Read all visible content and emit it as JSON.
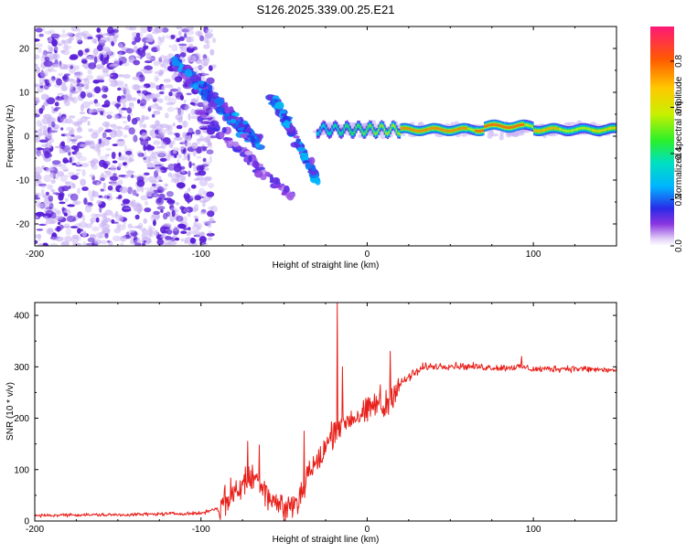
{
  "figure_title": "S126.2025.339.00.25.E21",
  "colors": {
    "frame": "#000000",
    "snr_line": "#e8201a",
    "speckle_strong": "#5a1fd8",
    "speckle_light": "#c9b3f3"
  },
  "chart_data": [
    {
      "type": "heatmap",
      "title": "S126.2025.339.00.25.E21",
      "xlabel": "Height of straight line (km)",
      "ylabel": "Frequency (Hz)",
      "xlim": [
        -200,
        150
      ],
      "ylim": [
        -25,
        25
      ],
      "x_ticks": [
        -200,
        -100,
        0,
        100
      ],
      "x_tick_labels": [
        "-200",
        "-100",
        "0",
        "100"
      ],
      "y_ticks": [
        20,
        10,
        0,
        -10,
        -20
      ],
      "y_tick_labels": [
        "20",
        "10",
        "0",
        "-10",
        "-20"
      ],
      "colorbar": {
        "label": "Normalized spectral amplitude",
        "range": [
          0,
          0.95
        ],
        "ticks": [
          0,
          0.2,
          0.4,
          0.6,
          0.8
        ],
        "tick_labels": [
          "0.0",
          "0.2",
          "0.4",
          "0.6",
          "0.8"
        ]
      },
      "features": [
        {
          "name": "diffuse scatter",
          "x_range": [
            -200,
            -100
          ],
          "y_range": [
            -25,
            25
          ]
        },
        {
          "name": "descending streak 1",
          "from": [
            -115,
            17
          ],
          "to": [
            -65,
            -2
          ]
        },
        {
          "name": "descending streak 2",
          "from": [
            -57,
            9
          ],
          "to": [
            -30,
            -10
          ]
        },
        {
          "name": "diagonal tail",
          "from": [
            -100,
            5
          ],
          "to": [
            -45,
            -14
          ]
        },
        {
          "name": "stable band",
          "x_range": [
            -30,
            150
          ],
          "y_center": 1.5,
          "peak_amplitude": 0.9
        }
      ]
    },
    {
      "type": "line",
      "xlabel": "Height of straight line (km)",
      "ylabel": "SNR (10 * v/v)",
      "xlim": [
        -200,
        150
      ],
      "ylim": [
        0,
        425
      ],
      "x_ticks": [
        -200,
        -100,
        0,
        100
      ],
      "x_tick_labels": [
        "-200",
        "-100",
        "0",
        "100"
      ],
      "y_ticks": [
        0,
        100,
        200,
        300,
        400
      ],
      "y_tick_labels": [
        "0",
        "100",
        "200",
        "300",
        "400"
      ],
      "series": [
        {
          "name": "SNR",
          "x": [
            -200,
            -180,
            -150,
            -120,
            -100,
            -90,
            -80,
            -72,
            -65,
            -58,
            -50,
            -42,
            -38,
            -35,
            -30,
            -25,
            -20,
            -15,
            -10,
            -5,
            0,
            5,
            10,
            14,
            18,
            25,
            35,
            50,
            80,
            93,
            100,
            120,
            150
          ],
          "y": [
            10,
            12,
            12,
            14,
            15,
            25,
            55,
            80,
            85,
            45,
            25,
            35,
            70,
            100,
            110,
            140,
            180,
            190,
            200,
            205,
            210,
            230,
            215,
            245,
            260,
            280,
            300,
            302,
            298,
            300,
            295,
            297,
            293
          ],
          "spikes": [
            [
              -72,
              155
            ],
            [
              -65,
              148
            ],
            [
              -38,
              175
            ],
            [
              -18,
              425
            ],
            [
              -15,
              300
            ],
            [
              8,
              265
            ],
            [
              14,
              330
            ],
            [
              93,
              320
            ]
          ]
        }
      ]
    }
  ]
}
